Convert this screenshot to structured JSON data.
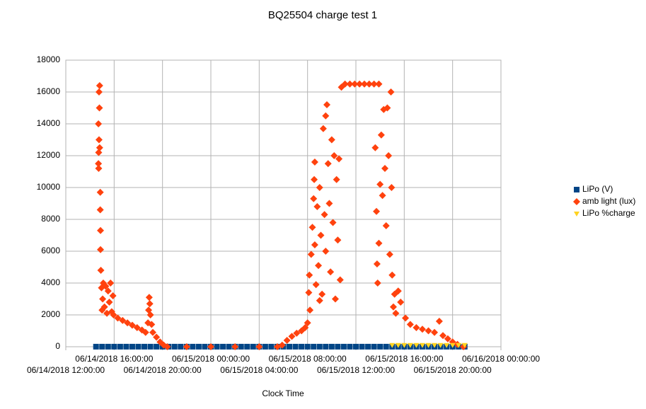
{
  "chart_data": {
    "type": "scatter",
    "title": "BQ25504 charge test 1",
    "x_label": "Clock Time",
    "xlim": [
      12,
      48
    ],
    "xticks": [
      {
        "value": 12,
        "label": "06/14/2018 12:00:00"
      },
      {
        "value": 16,
        "label": "06/14/2018 16:00:00"
      },
      {
        "value": 20,
        "label": "06/14/2018 20:00:00"
      },
      {
        "value": 24,
        "label": "06/15/2018 00:00:00"
      },
      {
        "value": 28,
        "label": "06/15/2018 04:00:00"
      },
      {
        "value": 32,
        "label": "06/15/2018 08:00:00"
      },
      {
        "value": 36,
        "label": "06/15/2018 12:00:00"
      },
      {
        "value": 40,
        "label": "06/15/2018 16:00:00"
      },
      {
        "value": 44,
        "label": "06/15/2018 20:00:00"
      },
      {
        "value": 48,
        "label": "06/16/2018 00:00:00"
      }
    ],
    "ylim": [
      0,
      18000
    ],
    "yticks": [
      0,
      2000,
      4000,
      6000,
      8000,
      10000,
      12000,
      14000,
      16000,
      18000
    ],
    "grid": true,
    "legend": "right",
    "series": [
      {
        "name": "LiPo (V)",
        "color": "#004586",
        "marker": "square",
        "x": [
          14.5,
          15,
          15.5,
          16,
          16.5,
          17,
          17.5,
          18,
          18.5,
          19,
          19.5,
          20,
          20.5,
          21,
          21.5,
          22,
          22.5,
          23,
          23.5,
          24,
          24.5,
          25,
          25.5,
          26,
          26.5,
          27,
          27.5,
          28,
          28.5,
          29,
          29.5,
          30,
          30.5,
          31,
          31.5,
          32,
          32.5,
          33,
          33.5,
          34,
          34.5,
          35,
          35.5,
          36,
          36.5,
          37,
          37.5,
          38,
          38.5,
          39,
          39.5,
          40,
          40.5,
          41,
          41.5,
          42,
          42.5,
          43,
          43.5,
          44,
          44.5,
          45
        ],
        "values": [
          3.7,
          3.8,
          3.9,
          3.9,
          3.9,
          3.9,
          3.9,
          3.9,
          3.9,
          3.9,
          3.9,
          3.9,
          3.8,
          3.8,
          3.8,
          3.8,
          3.8,
          3.8,
          3.8,
          3.8,
          3.8,
          3.8,
          3.8,
          3.8,
          3.8,
          3.8,
          3.8,
          3.8,
          3.8,
          3.8,
          3.8,
          3.8,
          3.8,
          3.9,
          3.9,
          3.9,
          4.0,
          4.0,
          4.0,
          4.0,
          4.0,
          4.0,
          4.0,
          4.0,
          4.0,
          4.0,
          4.0,
          4.0,
          4.0,
          4.0,
          4.0,
          4.0,
          4.0,
          4.0,
          4.0,
          4.0,
          4.0,
          4.0,
          4.0,
          4.0,
          4.0,
          4.0
        ]
      },
      {
        "name": "amb light (lux)",
        "color": "#ff420e",
        "marker": "diamond",
        "x": [
          14.7,
          14.72,
          14.75,
          14.7,
          14.78,
          14.75,
          14.8,
          14.72,
          14.8,
          14.85,
          14.85,
          14.87,
          14.87,
          14.9,
          14.95,
          15.0,
          15.05,
          15.1,
          15.2,
          15.3,
          15.4,
          15.5,
          15.6,
          15.7,
          15.8,
          15.9,
          15.95,
          16.3,
          16.7,
          17.1,
          17.5,
          17.9,
          18.3,
          18.6,
          18.8,
          18.85,
          18.9,
          18.95,
          19.0,
          19.1,
          19.2,
          19.5,
          19.8,
          20.1,
          20.4,
          22,
          24,
          26,
          28,
          29.5,
          29.9,
          30.3,
          30.7,
          31.1,
          31.5,
          31.8,
          32.0,
          32.1,
          32.15,
          32.2,
          32.3,
          32.4,
          32.5,
          32.55,
          32.6,
          32.6,
          32.7,
          32.8,
          32.9,
          33.0,
          33.0,
          33.1,
          33.2,
          33.3,
          33.4,
          33.5,
          33.5,
          33.6,
          33.7,
          33.8,
          33.9,
          34.0,
          34.1,
          34.2,
          34.3,
          34.4,
          34.5,
          34.6,
          34.7,
          34.8,
          35.1,
          35.5,
          35.9,
          36.3,
          36.7,
          37.1,
          37.5,
          37.9,
          37.6,
          37.7,
          37.75,
          37.8,
          37.9,
          38.0,
          38.1,
          38.2,
          38.3,
          38.4,
          38.5,
          38.6,
          38.7,
          38.8,
          38.9,
          38.95,
          39.0,
          39.1,
          39.2,
          39.3,
          39.5,
          39.7,
          40.1,
          40.5,
          41.0,
          41.5,
          42.0,
          42.5,
          42.9,
          43.2,
          43.6,
          44.0,
          44.4,
          44.9
        ],
        "values": [
          11500,
          12200,
          13000,
          14000,
          15000,
          16000,
          16400,
          11200,
          12500,
          9700,
          8600,
          7300,
          6100,
          4800,
          3700,
          2300,
          3000,
          4000,
          2500,
          3800,
          2100,
          3500,
          2800,
          4000,
          2200,
          3200,
          2000,
          1800,
          1650,
          1500,
          1350,
          1200,
          1050,
          900,
          1500,
          2300,
          3100,
          2700,
          2000,
          1400,
          900,
          600,
          300,
          100,
          0,
          0,
          0,
          0,
          0,
          0,
          100,
          400,
          650,
          850,
          1000,
          1200,
          1500,
          3400,
          4500,
          2300,
          5800,
          7500,
          9300,
          10500,
          11600,
          6400,
          3900,
          8800,
          5100,
          2900,
          10000,
          7000,
          3300,
          13700,
          8300,
          14500,
          6000,
          15200,
          11500,
          9000,
          4700,
          13000,
          7800,
          12000,
          3000,
          10500,
          6700,
          11800,
          4200,
          16300,
          16500,
          16500,
          16500,
          16500,
          16500,
          16500,
          16500,
          16500,
          12500,
          8500,
          5200,
          4000,
          6500,
          10200,
          13300,
          9500,
          14900,
          11200,
          7600,
          15000,
          12000,
          5800,
          16000,
          10000,
          4500,
          2500,
          3300,
          2100,
          3500,
          2800,
          1800,
          1400,
          1200,
          1100,
          1000,
          900,
          1600,
          700,
          500,
          300,
          150,
          0
        ]
      },
      {
        "name": "LiPo %charge",
        "color": "#ffd320",
        "marker": "triangle",
        "x": [
          39,
          39.5,
          40,
          40.5,
          41,
          41.5,
          42,
          42.5,
          43,
          43.5,
          44,
          44.5,
          45
        ],
        "values": [
          100,
          100,
          100,
          100,
          100,
          100,
          100,
          100,
          100,
          100,
          100,
          100,
          100
        ]
      }
    ]
  }
}
